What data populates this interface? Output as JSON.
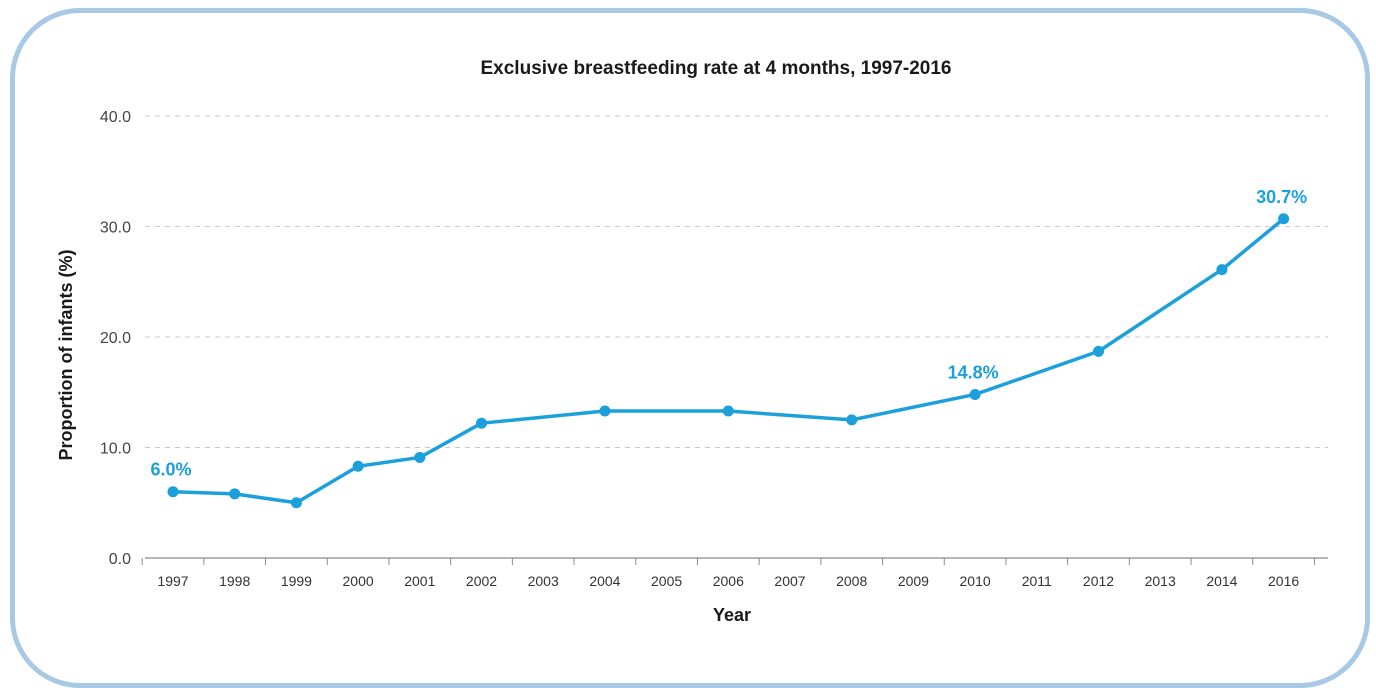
{
  "chart_data": {
    "type": "line",
    "title": "Exclusive breastfeeding rate at 4 months, 1997-2016",
    "xlabel": "Year",
    "ylabel": "Proportion of infants (%)",
    "ylim": [
      0,
      40
    ],
    "yticks": [
      "0.0",
      "10.0",
      "20.0",
      "30.0",
      "40.0"
    ],
    "grid": true,
    "categories": [
      "1997",
      "1998",
      "1999",
      "2000",
      "2001",
      "2002",
      "2003",
      "2004",
      "2005",
      "2006",
      "2007",
      "2008",
      "2009",
      "2010",
      "2011",
      "2012",
      "2013",
      "2014",
      "2016"
    ],
    "series": [
      {
        "values": [
          6.0,
          5.8,
          5.0,
          8.3,
          9.1,
          12.2,
          null,
          13.3,
          null,
          13.3,
          null,
          12.5,
          null,
          14.8,
          null,
          18.7,
          null,
          26.1,
          30.7
        ],
        "color": "#1ba0dc"
      }
    ],
    "annotations": [
      {
        "category": "1997",
        "text": "6.0%"
      },
      {
        "category": "2010",
        "text": "14.8%"
      },
      {
        "category": "2016",
        "text": "30.7%"
      }
    ]
  }
}
